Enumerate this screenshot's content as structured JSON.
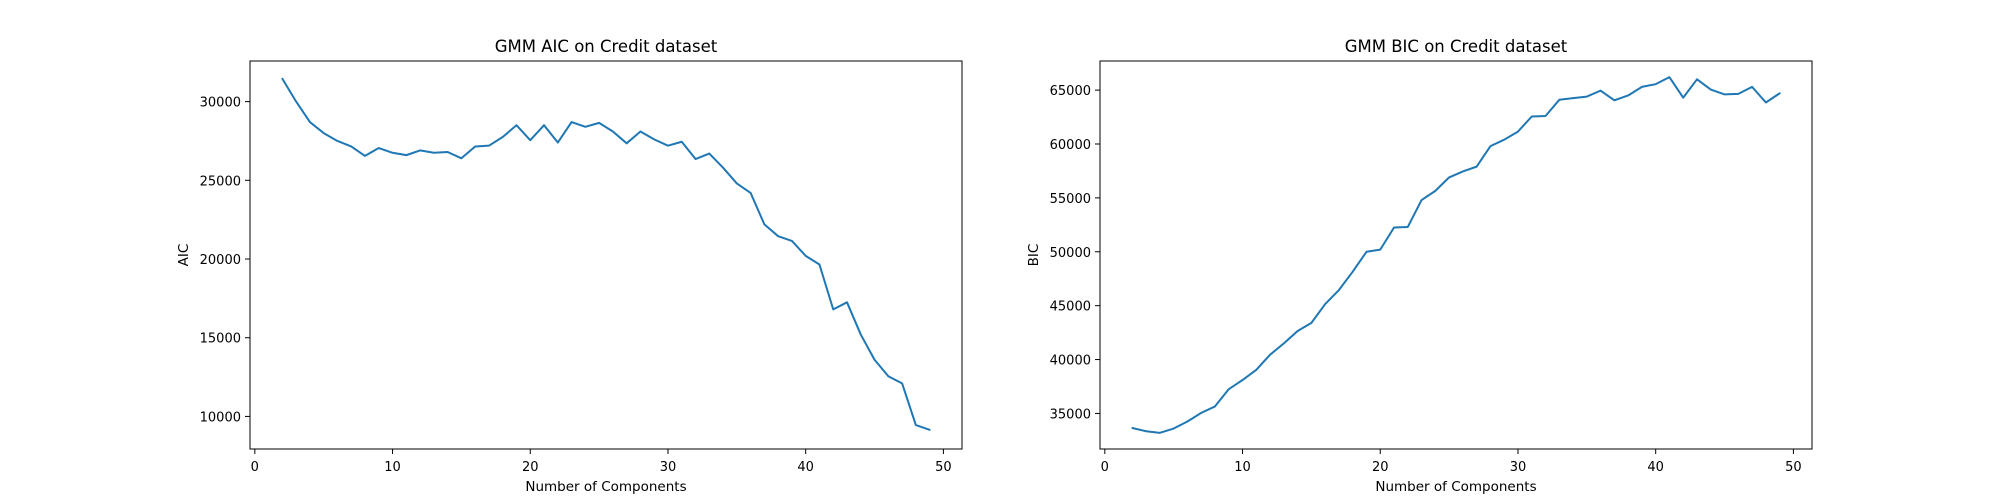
{
  "chart_data": [
    {
      "type": "line",
      "title": "GMM AIC on Credit dataset",
      "xlabel": "Number of Components",
      "ylabel": "AIC",
      "xlim": [
        -0.35,
        51.35
      ],
      "ylim": [
        7930,
        32580
      ],
      "xticks": [
        0,
        10,
        20,
        30,
        40,
        50
      ],
      "yticks": [
        10000,
        15000,
        20000,
        25000,
        30000
      ],
      "grid": false,
      "series": [
        {
          "color": "#1f77b4",
          "x": [
            2,
            3,
            4,
            5,
            6,
            7,
            8,
            9,
            10,
            11,
            12,
            13,
            14,
            15,
            16,
            17,
            18,
            19,
            20,
            21,
            22,
            23,
            24,
            25,
            26,
            27,
            28,
            29,
            30,
            31,
            32,
            33,
            34,
            35,
            36,
            37,
            38,
            39,
            40,
            41,
            42,
            43,
            44,
            45,
            46,
            47,
            48,
            49
          ],
          "values": [
            31450,
            30000,
            28700,
            28000,
            27500,
            27150,
            26550,
            27050,
            26750,
            26600,
            26900,
            26750,
            26800,
            26400,
            27150,
            27200,
            27750,
            28500,
            27550,
            28500,
            27400,
            28700,
            28400,
            28650,
            28100,
            27350,
            28100,
            27600,
            27200,
            27450,
            26350,
            26700,
            25800,
            24800,
            24200,
            22200,
            21450,
            21150,
            20200,
            19650,
            16800,
            17250,
            15200,
            13600,
            12550,
            12100,
            9450,
            9150
          ]
        }
      ]
    },
    {
      "type": "line",
      "title": "GMM BIC on Credit dataset",
      "xlabel": "Number of Components",
      "ylabel": "BIC",
      "xlim": [
        -0.35,
        51.35
      ],
      "ylim": [
        31700,
        67700
      ],
      "xticks": [
        0,
        10,
        20,
        30,
        40,
        50
      ],
      "yticks": [
        35000,
        40000,
        45000,
        50000,
        55000,
        60000,
        65000
      ],
      "grid": false,
      "series": [
        {
          "color": "#1f77b4",
          "x": [
            2,
            3,
            4,
            5,
            6,
            7,
            8,
            9,
            10,
            11,
            12,
            13,
            14,
            15,
            16,
            17,
            18,
            19,
            20,
            21,
            22,
            23,
            24,
            25,
            26,
            27,
            28,
            29,
            30,
            31,
            32,
            33,
            34,
            35,
            36,
            37,
            38,
            39,
            40,
            41,
            42,
            43,
            44,
            45,
            46,
            47,
            48,
            49
          ],
          "values": [
            33650,
            33350,
            33200,
            33600,
            34250,
            35050,
            35650,
            37250,
            38100,
            39050,
            40450,
            41500,
            42650,
            43400,
            45150,
            46450,
            48150,
            50000,
            50200,
            52250,
            52300,
            54800,
            55650,
            56900,
            57450,
            57900,
            59800,
            60400,
            61150,
            62550,
            62600,
            64100,
            64250,
            64400,
            64950,
            64050,
            64500,
            65300,
            65550,
            66200,
            64300,
            66000,
            65050,
            64600,
            64650,
            65300,
            63850,
            64700
          ]
        }
      ]
    }
  ]
}
